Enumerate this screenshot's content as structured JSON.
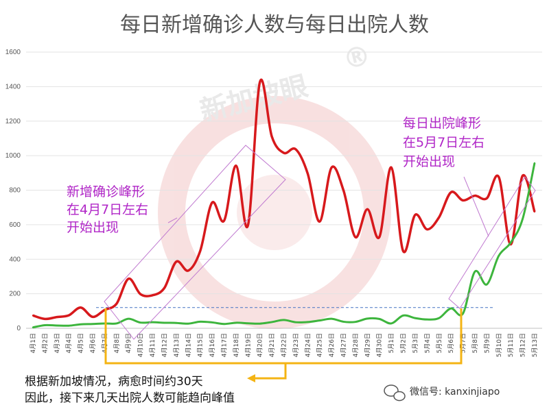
{
  "chart_data": {
    "type": "line",
    "title": "每日新增确诊人数与每日出院人数",
    "ylim": [
      0,
      1600
    ],
    "yticks": [
      0,
      200,
      400,
      600,
      800,
      1000,
      1200,
      1400,
      1600
    ],
    "grid": true,
    "categories": [
      "4月1日",
      "4月2日",
      "4月3日",
      "4月4日",
      "4月5日",
      "4月6日",
      "4月7日",
      "4月8日",
      "4月9日",
      "4月10日",
      "4月11日",
      "4月12日",
      "4月13日",
      "4月14日",
      "4月15日",
      "4月16日",
      "4月17日",
      "4月18日",
      "4月19日",
      "4月20日",
      "4月21日",
      "4月22日",
      "4月23日",
      "4月24日",
      "4月25日",
      "4月26日",
      "4月27日",
      "4月28日",
      "4月29日",
      "4月30日",
      "5月1日",
      "5月2日",
      "5月3日",
      "5月4日",
      "5月5日",
      "5月6日",
      "5月7日",
      "5月8日",
      "5月9日",
      "5月10日",
      "5月11日",
      "5月12日",
      "5月13日"
    ],
    "series": [
      {
        "name": "",
        "color": "#d7191c",
        "values": [
          74,
          54,
          65,
          75,
          120,
          66,
          106,
          142,
          287,
          198,
          191,
          233,
          386,
          334,
          447,
          728,
          623,
          942,
          596,
          1426,
          1111,
          1016,
          1037,
          897,
          618,
          931,
          799,
          528,
          690,
          528,
          932,
          447,
          657,
          573,
          643,
          788,
          741,
          768,
          753,
          876,
          486,
          884,
          675
        ]
      },
      {
        "name": "",
        "color": "#3db53d",
        "values": [
          5,
          18,
          16,
          15,
          23,
          25,
          28,
          28,
          55,
          33,
          35,
          32,
          31,
          27,
          38,
          34,
          25,
          32,
          29,
          27,
          36,
          48,
          35,
          36,
          45,
          55,
          38,
          37,
          56,
          54,
          28,
          74,
          59,
          51,
          59,
          115,
          85,
          328,
          254,
          420,
          496,
          634,
          957
        ]
      }
    ],
    "annotations": {
      "confirmed_peak": [
        "新增确诊峰形",
        "在4月7日左右",
        "开始出现"
      ],
      "discharge_peak": [
        "每日出院峰形",
        "在5月7日左右",
        "开始出现"
      ],
      "note_line1": "根据新加坡情况，病愈时间约30天",
      "note_line2": "因此，接下来几天出院人数可能趋向峰值"
    },
    "reference_line_value": 120
  },
  "watermark": {
    "text": "新加坡眼",
    "symbol": "®"
  },
  "footer": {
    "wechat_label": "微信号: kanxinjiapo"
  },
  "colors": {
    "annotation": "#b026c7",
    "arrow": "#f4b414",
    "reference": "#4472c4"
  }
}
